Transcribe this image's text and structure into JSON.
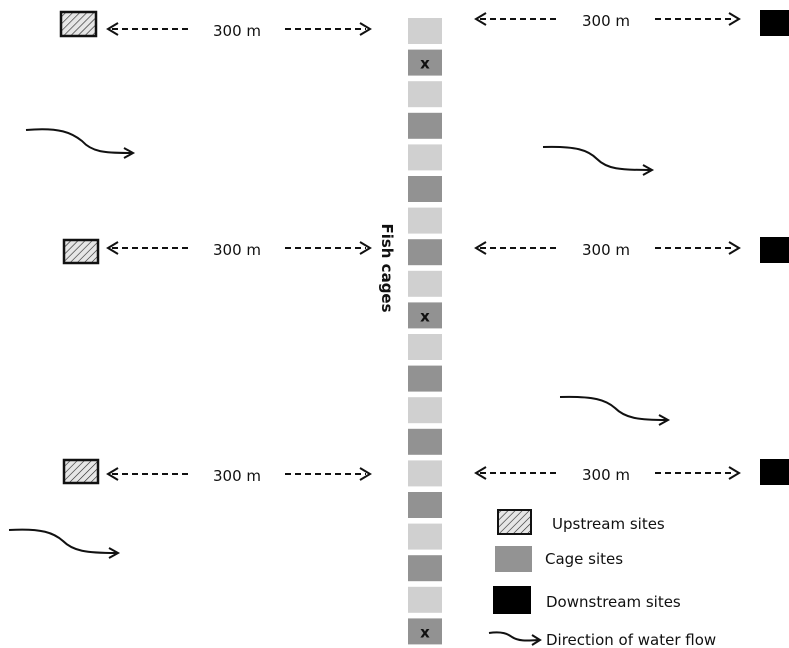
{
  "distance_label": "300 m",
  "cage_column_label": "Fish cages",
  "cage_marker": "x",
  "cages": [
    {
      "shade": "light",
      "marked": false
    },
    {
      "shade": "dark",
      "marked": true
    },
    {
      "shade": "light",
      "marked": false
    },
    {
      "shade": "dark",
      "marked": false
    },
    {
      "shade": "light",
      "marked": false
    },
    {
      "shade": "dark",
      "marked": false
    },
    {
      "shade": "light",
      "marked": false
    },
    {
      "shade": "dark",
      "marked": false
    },
    {
      "shade": "light",
      "marked": false
    },
    {
      "shade": "dark",
      "marked": true
    },
    {
      "shade": "light",
      "marked": false
    },
    {
      "shade": "dark",
      "marked": false
    },
    {
      "shade": "light",
      "marked": false
    },
    {
      "shade": "dark",
      "marked": false
    },
    {
      "shade": "light",
      "marked": false
    },
    {
      "shade": "dark",
      "marked": false
    },
    {
      "shade": "light",
      "marked": false
    },
    {
      "shade": "dark",
      "marked": false
    },
    {
      "shade": "light",
      "marked": false
    },
    {
      "shade": "dark",
      "marked": true
    }
  ],
  "legend": {
    "upstream": "Upstream sites",
    "cage": "Cage sites",
    "downstream": "Downstream sites",
    "flow": "Direction of water flow"
  },
  "colors": {
    "cage_light": "#d0d0d0",
    "cage_dark": "#929292",
    "cage_site": "#939393",
    "downstream": "#000000",
    "upstream_fill": "#e6e6e6",
    "line": "#111111"
  }
}
